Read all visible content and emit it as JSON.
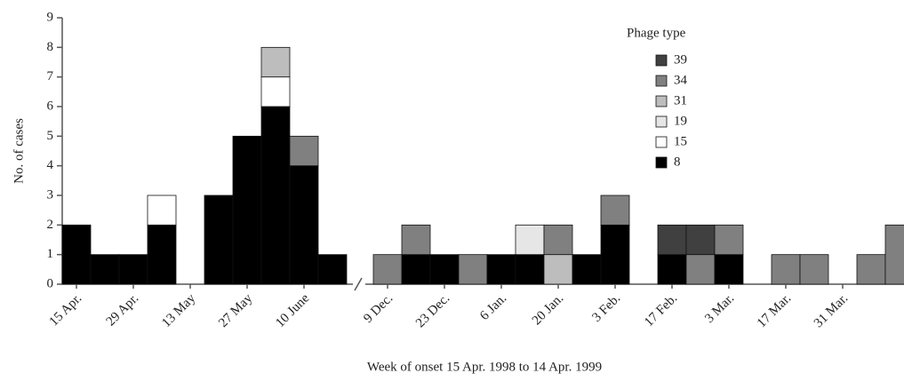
{
  "chart_data": {
    "type": "stacked_bar",
    "y_label": "No. of cases",
    "x_label": "Week of onset 15 Apr. 1998 to 14 Apr. 1999",
    "legend_title": "Phage type",
    "categories": [
      "15 Apr.",
      null,
      "29 Apr.",
      null,
      "13 May",
      null,
      "27 May",
      null,
      "10 June",
      null,
      "9 Dec.",
      null,
      "23 Dec.",
      null,
      "6 Jan.",
      null,
      "20 Jan.",
      null,
      "3 Feb.",
      null,
      "17 Feb.",
      null,
      "3 Mar.",
      null,
      "17 Mar.",
      null,
      "31 Mar.",
      null,
      null
    ],
    "ylim": [
      0,
      9
    ],
    "yticks": [
      0,
      1,
      2,
      3,
      4,
      5,
      6,
      7,
      8,
      9
    ],
    "series": [
      {
        "name": "39",
        "color": "#404040",
        "values": [
          0,
          0,
          0,
          0,
          0,
          0,
          0,
          0,
          0,
          0,
          0,
          0,
          0,
          0,
          0,
          0,
          0,
          0,
          0,
          0,
          1,
          1,
          0,
          0,
          0,
          0,
          0,
          0,
          0
        ]
      },
      {
        "name": "34",
        "color": "#808080",
        "values": [
          0,
          0,
          0,
          0,
          0,
          0,
          0,
          0,
          1,
          0,
          1,
          1,
          0,
          1,
          0,
          0,
          1,
          0,
          1,
          0,
          0,
          1,
          1,
          0,
          1,
          1,
          0,
          1,
          2
        ]
      },
      {
        "name": "31",
        "color": "#bdbdbd",
        "values": [
          0,
          0,
          0,
          0,
          0,
          0,
          0,
          1,
          0,
          0,
          0,
          0,
          0,
          0,
          0,
          0,
          1,
          0,
          0,
          0,
          0,
          0,
          0,
          0,
          0,
          0,
          0,
          0,
          0
        ]
      },
      {
        "name": "19",
        "color": "#e6e6e6",
        "values": [
          0,
          0,
          0,
          0,
          0,
          0,
          0,
          0,
          0,
          0,
          0,
          0,
          0,
          0,
          0,
          1,
          0,
          0,
          0,
          0,
          0,
          0,
          0,
          0,
          0,
          0,
          0,
          0,
          0
        ]
      },
      {
        "name": "15",
        "color": "#ffffff",
        "values": [
          0,
          0,
          0,
          1,
          0,
          0,
          0,
          1,
          0,
          0,
          0,
          0,
          0,
          0,
          0,
          0,
          0,
          0,
          0,
          0,
          0,
          0,
          0,
          0,
          0,
          0,
          0,
          0,
          0
        ]
      },
      {
        "name": "8",
        "color": "#000000",
        "values": [
          2,
          1,
          1,
          2,
          0,
          3,
          5,
          6,
          4,
          1,
          0,
          1,
          1,
          0,
          1,
          1,
          0,
          1,
          2,
          0,
          1,
          0,
          1,
          0,
          0,
          0,
          0,
          0,
          0
        ]
      }
    ]
  }
}
